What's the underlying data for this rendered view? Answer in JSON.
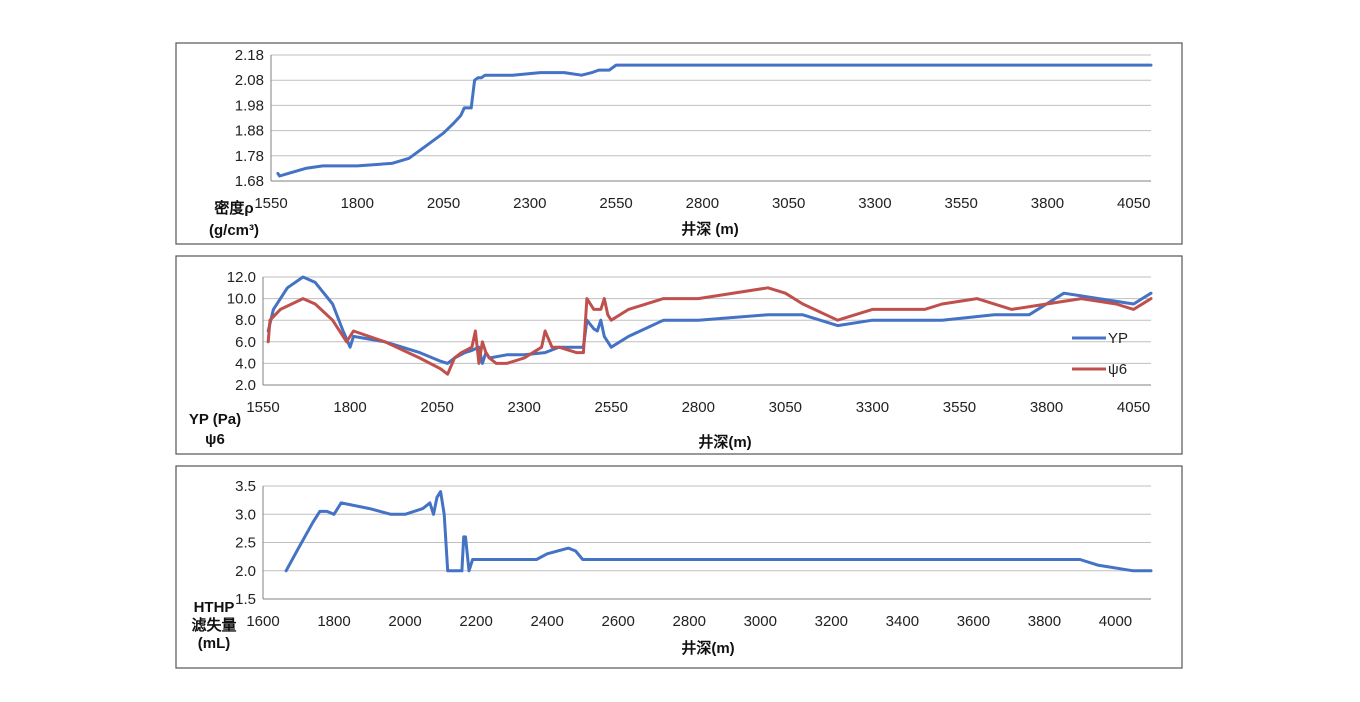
{
  "chart_data": [
    {
      "type": "line",
      "xlabel": "井深 (m)",
      "ylabel": [
        "密度ρ",
        "(g/cm³)"
      ],
      "xlim": [
        1550,
        4100
      ],
      "ylim": [
        1.68,
        2.18
      ],
      "xticks": [
        "1550",
        "1800",
        "2050",
        "2300",
        "2550",
        "2800",
        "3050",
        "3300",
        "3550",
        "3800",
        "4050"
      ],
      "yticks": [
        "1.68",
        "1.78",
        "1.88",
        "1.98",
        "2.08",
        "2.18"
      ],
      "grid": true,
      "legend": "none",
      "series": [
        {
          "color": "#4472C4",
          "x": [
            1570,
            1575,
            1600,
            1650,
            1700,
            1800,
            1900,
            1950,
            2000,
            2050,
            2080,
            2100,
            2110,
            2130,
            2140,
            2150,
            2160,
            2170,
            2190,
            2250,
            2330,
            2400,
            2450,
            2480,
            2500,
            2530,
            2550,
            2600,
            2700,
            2800,
            2900,
            3000,
            3500,
            4100
          ],
          "y": [
            1.71,
            1.7,
            1.71,
            1.73,
            1.74,
            1.74,
            1.75,
            1.77,
            1.82,
            1.87,
            1.91,
            1.94,
            1.97,
            1.97,
            2.08,
            2.09,
            2.09,
            2.1,
            2.1,
            2.1,
            2.11,
            2.11,
            2.1,
            2.11,
            2.12,
            2.12,
            2.14,
            2.14,
            2.14,
            2.14,
            2.14,
            2.14,
            2.14,
            2.14
          ]
        }
      ]
    },
    {
      "type": "line",
      "xlabel": "井深(m)",
      "ylabel": [
        "YP (Pa)",
        "ψ6"
      ],
      "xlim": [
        1550,
        4100
      ],
      "ylim": [
        2.0,
        12.0
      ],
      "xticks": [
        "1550",
        "1800",
        "2050",
        "2300",
        "2550",
        "2800",
        "3050",
        "3300",
        "3550",
        "3800",
        "4050"
      ],
      "yticks": [
        "2.0",
        "4.0",
        "6.0",
        "8.0",
        "10.0",
        "12.0"
      ],
      "grid": true,
      "legend": "right",
      "series": [
        {
          "name": "YP",
          "color": "#4472C4",
          "x": [
            1565,
            1580,
            1620,
            1665,
            1700,
            1750,
            1780,
            1800,
            1810,
            1900,
            2000,
            2060,
            2080,
            2100,
            2130,
            2150,
            2170,
            2180,
            2190,
            2200,
            2250,
            2300,
            2360,
            2400,
            2450,
            2470,
            2480,
            2500,
            2510,
            2520,
            2530,
            2550,
            2600,
            2700,
            2800,
            3000,
            3100,
            3200,
            3300,
            3400,
            3500,
            3650,
            3750,
            3850,
            3950,
            4050,
            4100
          ],
          "y": [
            7.0,
            9.0,
            11.0,
            12.0,
            11.5,
            9.5,
            7.0,
            5.5,
            6.5,
            6.0,
            5.0,
            4.2,
            4.0,
            4.5,
            5.0,
            5.2,
            5.5,
            4.0,
            5.0,
            4.5,
            4.8,
            4.8,
            5.0,
            5.5,
            5.5,
            5.5,
            8.0,
            7.2,
            7.0,
            8.0,
            6.5,
            5.5,
            6.5,
            8.0,
            8.0,
            8.5,
            8.5,
            7.5,
            8.0,
            8.0,
            8.0,
            8.5,
            8.5,
            10.5,
            10.0,
            9.5,
            10.5
          ]
        },
        {
          "name": "ψ6",
          "color": "#C0504D",
          "x": [
            1565,
            1570,
            1600,
            1665,
            1700,
            1750,
            1790,
            1810,
            1900,
            2000,
            2060,
            2080,
            2100,
            2120,
            2150,
            2160,
            2170,
            2180,
            2190,
            2200,
            2220,
            2250,
            2300,
            2350,
            2360,
            2380,
            2400,
            2450,
            2470,
            2480,
            2500,
            2510,
            2520,
            2530,
            2540,
            2550,
            2600,
            2700,
            2800,
            3000,
            3050,
            3100,
            3200,
            3300,
            3450,
            3500,
            3600,
            3700,
            3800,
            3900,
            4000,
            4050,
            4100
          ],
          "y": [
            6.0,
            8.0,
            9.0,
            10.0,
            9.5,
            8.0,
            6.0,
            7.0,
            6.0,
            4.5,
            3.5,
            3.0,
            4.5,
            5.0,
            5.5,
            7.0,
            4.0,
            6.0,
            5.0,
            4.5,
            4.0,
            4.0,
            4.5,
            5.5,
            7.0,
            5.5,
            5.5,
            5.0,
            5.0,
            10.0,
            9.0,
            9.0,
            9.0,
            10.0,
            8.5,
            8.0,
            9.0,
            10.0,
            10.0,
            11.0,
            10.5,
            9.5,
            8.0,
            9.0,
            9.0,
            9.5,
            10.0,
            9.0,
            9.5,
            10.0,
            9.5,
            9.0,
            10.0
          ]
        }
      ]
    },
    {
      "type": "line",
      "xlabel": "井深(m)",
      "ylabel": [
        "HTHP",
        "滤失量",
        "(mL)"
      ],
      "xlim": [
        1600,
        4100
      ],
      "ylim": [
        1.5,
        3.5
      ],
      "xticks": [
        "1600",
        "1800",
        "2000",
        "2200",
        "2400",
        "2600",
        "2800",
        "3000",
        "3200",
        "3400",
        "3600",
        "3800",
        "4000"
      ],
      "yticks": [
        "1.5",
        "2.0",
        "2.5",
        "3.0",
        "3.5"
      ],
      "grid": true,
      "legend": "none",
      "series": [
        {
          "color": "#4472C4",
          "x": [
            1665,
            1700,
            1740,
            1760,
            1780,
            1800,
            1820,
            1900,
            1960,
            2000,
            2050,
            2070,
            2080,
            2090,
            2100,
            2110,
            2120,
            2130,
            2150,
            2160,
            2165,
            2170,
            2180,
            2190,
            2300,
            2370,
            2400,
            2460,
            2480,
            2500,
            2550,
            2700,
            3000,
            3500,
            3850,
            3900,
            3950,
            4050,
            4100
          ],
          "y": [
            2.0,
            2.4,
            2.85,
            3.05,
            3.05,
            3.0,
            3.2,
            3.1,
            3.0,
            3.0,
            3.1,
            3.2,
            3.0,
            3.3,
            3.4,
            3.0,
            2.0,
            2.0,
            2.0,
            2.0,
            2.6,
            2.6,
            2.0,
            2.2,
            2.2,
            2.2,
            2.3,
            2.4,
            2.35,
            2.2,
            2.2,
            2.2,
            2.2,
            2.2,
            2.2,
            2.2,
            2.1,
            2.0,
            2.0
          ]
        }
      ]
    }
  ]
}
